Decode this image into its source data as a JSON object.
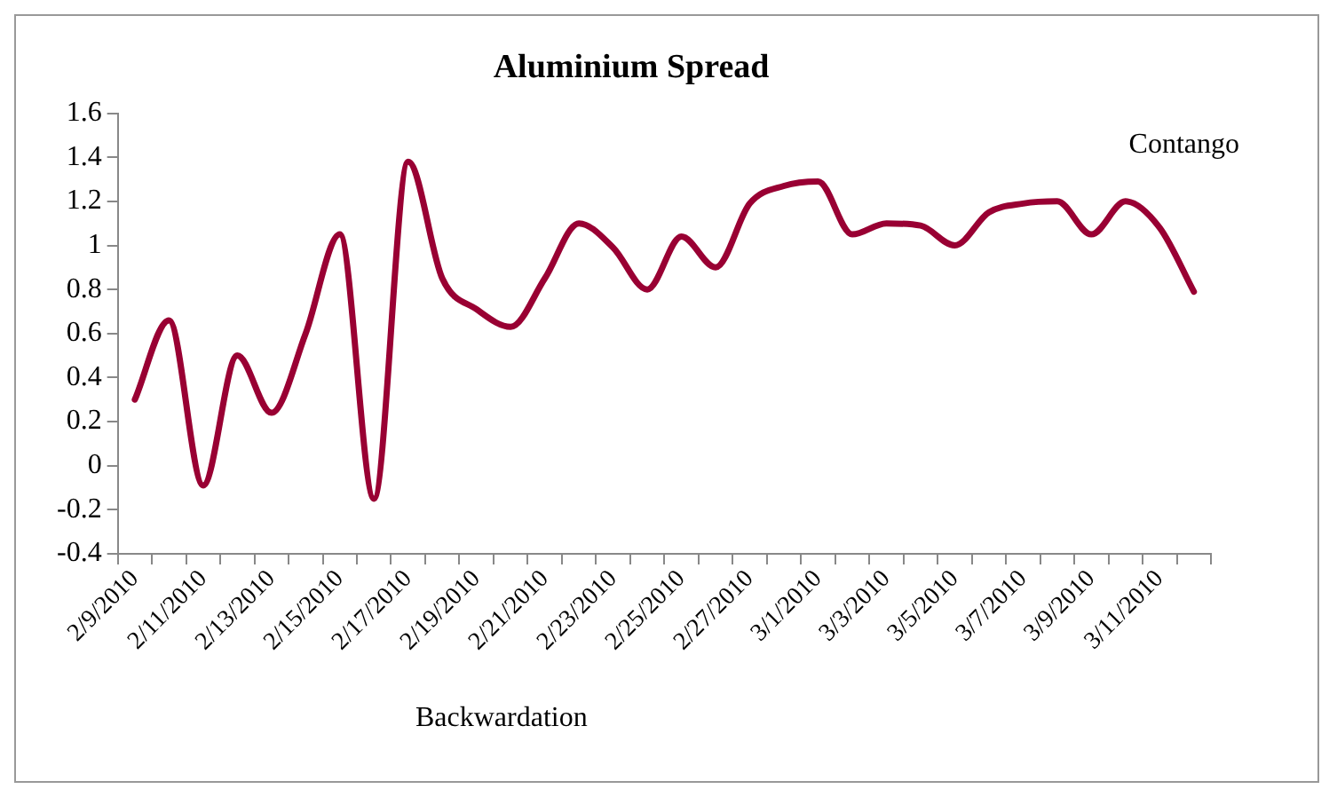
{
  "chart_data": {
    "type": "line",
    "title": "Aluminium Spread",
    "categories": [
      "2/9/2010",
      null,
      "2/11/2010",
      null,
      "2/13/2010",
      null,
      "2/15/2010",
      null,
      "2/17/2010",
      null,
      "2/19/2010",
      null,
      "2/21/2010",
      null,
      "2/23/2010",
      null,
      "2/25/2010",
      null,
      "2/27/2010",
      null,
      "3/1/2010",
      null,
      "3/3/2010",
      null,
      "3/5/2010",
      null,
      "3/7/2010",
      null,
      "3/9/2010",
      null,
      "3/11/2010",
      null
    ],
    "series": [
      {
        "color": "#990033",
        "values": [
          0.3,
          0.66,
          -0.09,
          0.5,
          0.24,
          0.6,
          1.05,
          -0.15,
          1.38,
          0.85,
          0.71,
          0.63,
          0.85,
          1.1,
          0.99,
          0.8,
          1.04,
          0.9,
          1.19,
          1.27,
          1.29,
          1.05,
          1.1,
          1.09,
          1.0,
          1.15,
          1.19,
          1.2,
          1.05,
          1.2,
          1.08,
          0.79
        ]
      }
    ],
    "ylim": [
      -0.4,
      1.6
    ],
    "yticks": [
      -0.4,
      -0.2,
      0,
      0.2,
      0.4,
      0.6,
      0.8,
      1,
      1.2,
      1.4,
      1.6
    ],
    "grid": false,
    "legend": false,
    "marker": "none",
    "line_style": "solid",
    "annotations": [
      "Contango",
      "Backwardation"
    ]
  }
}
